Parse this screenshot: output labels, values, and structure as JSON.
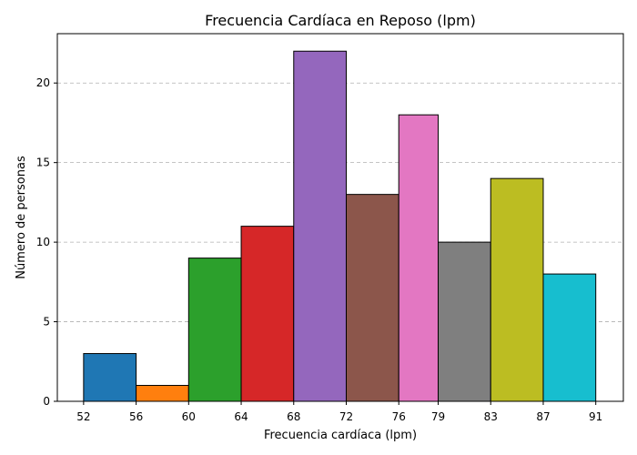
{
  "chart_data": {
    "type": "bar",
    "title": "Frecuencia Cardíaca en Reposo (lpm)",
    "xlabel": "Frecuencia cardíaca (lpm)",
    "ylabel": "Número de personas",
    "bin_edges": [
      52,
      56,
      60,
      64,
      68,
      72,
      76,
      79,
      83,
      87,
      91
    ],
    "x_tick_labels": [
      "52",
      "56",
      "60",
      "64",
      "68",
      "72",
      "76",
      "79",
      "83",
      "87",
      "91"
    ],
    "values": [
      3,
      1,
      9,
      11,
      22,
      13,
      18,
      10,
      14,
      8
    ],
    "colors": [
      "#1f77b4",
      "#ff7f0e",
      "#2ca02c",
      "#d62728",
      "#9467bd",
      "#8c564b",
      "#e377c2",
      "#7f7f7f",
      "#bcbd22",
      "#17becf"
    ],
    "xlim": [
      50.0,
      93.1
    ],
    "ylim": [
      0,
      23.1
    ],
    "y_ticks": [
      0,
      5,
      10,
      15,
      20
    ],
    "y_tick_labels": [
      "0",
      "5",
      "10",
      "15",
      "20"
    ],
    "grid": "y-dashed",
    "legend": "none"
  }
}
